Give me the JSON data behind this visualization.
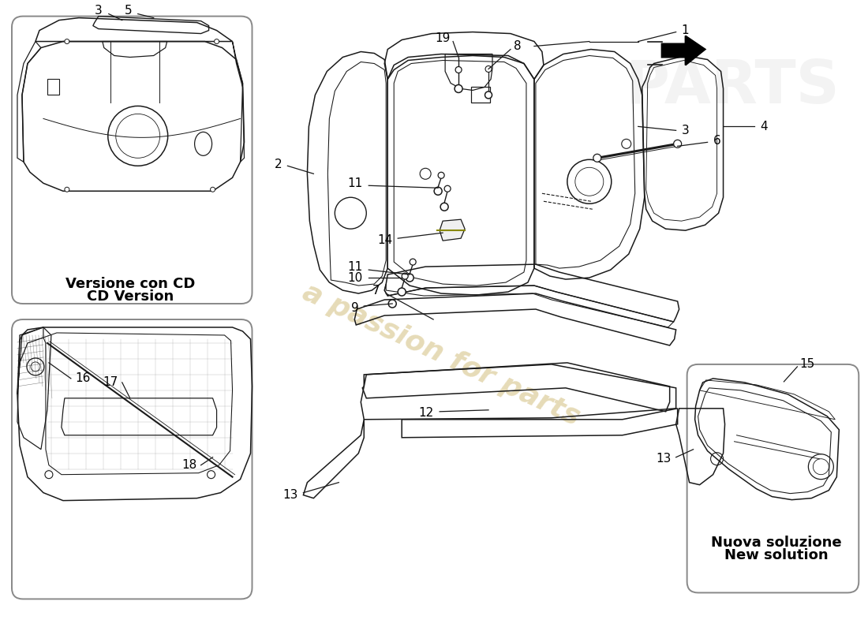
{
  "bg_color": "#ffffff",
  "line_color": "#1a1a1a",
  "watermark_color": "#c8b060",
  "label_cd_it": "Versione con CD",
  "label_cd_en": "CD Version",
  "label_ns_it": "Nuova soluzione",
  "label_ns_en": "New solution",
  "label_fontsize": 11,
  "caption_fontsize": 13,
  "box_color": "#888888"
}
